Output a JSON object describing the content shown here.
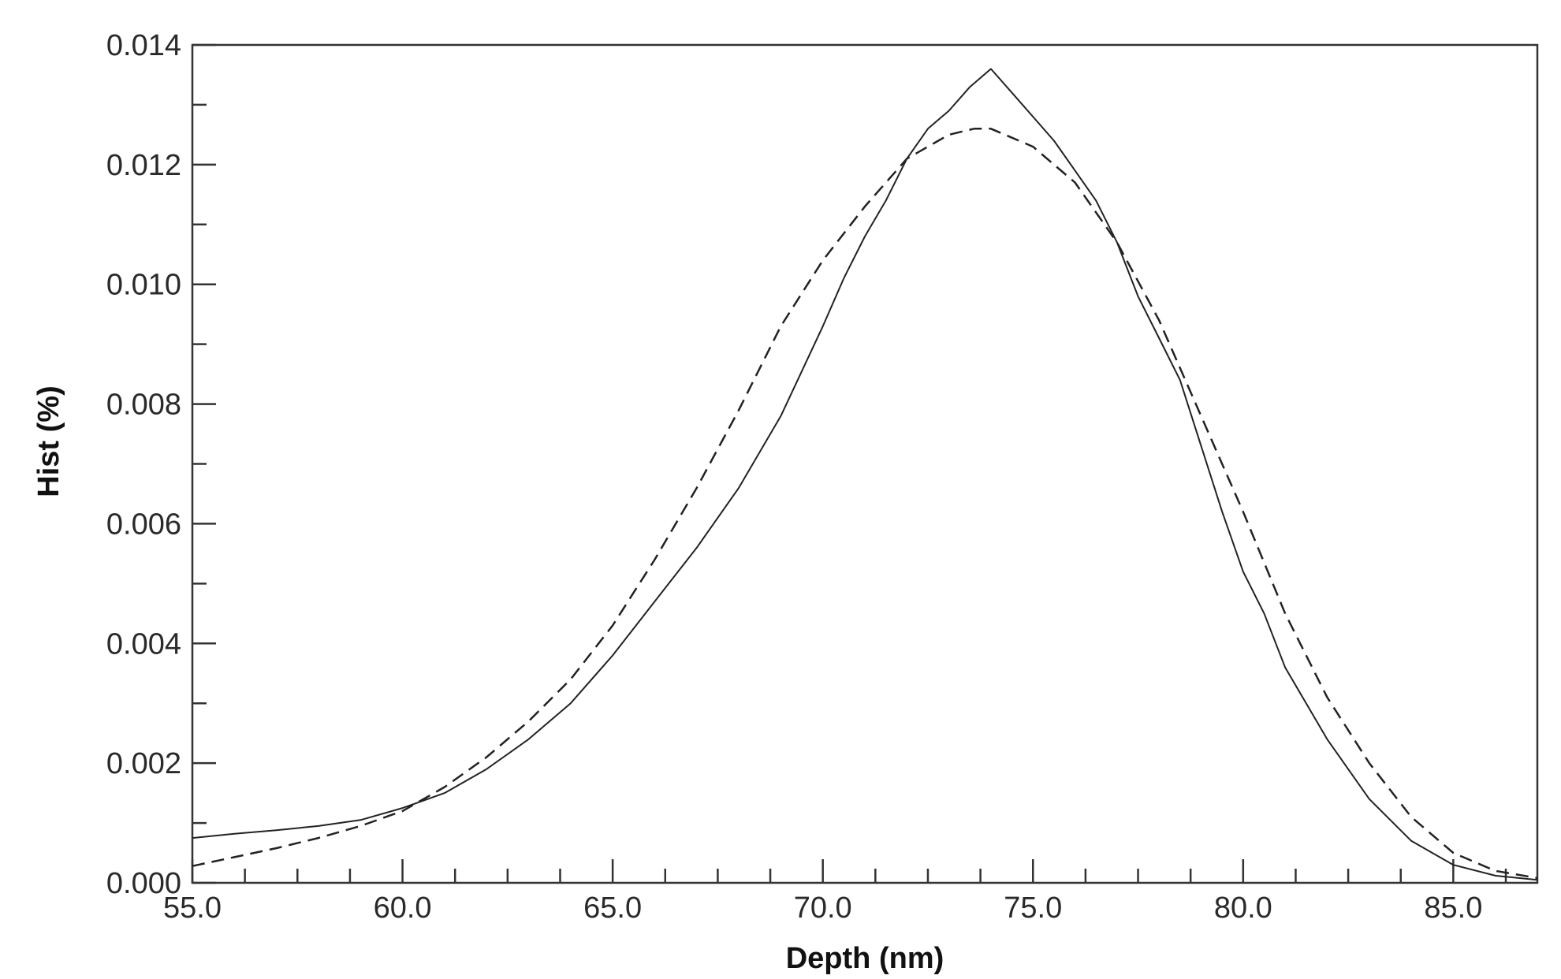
{
  "chart_data": {
    "type": "line",
    "xlabel": "Depth (nm)",
    "ylabel": "Hist (%)",
    "xlim": [
      55.0,
      87.0
    ],
    "ylim": [
      0.0,
      0.014
    ],
    "x_ticks": [
      "55.0",
      "60.0",
      "65.0",
      "70.0",
      "75.0",
      "80.0",
      "85.0"
    ],
    "y_ticks": [
      "0.000",
      "0.002",
      "0.004",
      "0.006",
      "0.008",
      "0.010",
      "0.012",
      "0.014"
    ],
    "grid": false,
    "series": [
      {
        "style": "solid",
        "x": [
          55.0,
          56.0,
          57.0,
          58.0,
          59.0,
          60.0,
          61.0,
          62.0,
          63.0,
          64.0,
          65.0,
          66.0,
          67.0,
          68.0,
          69.0,
          70.0,
          70.5,
          71.0,
          71.5,
          72.0,
          72.5,
          73.0,
          73.5,
          74.0,
          74.5,
          75.0,
          75.5,
          76.0,
          76.5,
          77.0,
          77.5,
          78.0,
          78.5,
          79.0,
          79.5,
          80.0,
          80.5,
          81.0,
          82.0,
          83.0,
          84.0,
          85.0,
          86.0,
          87.0
        ],
        "y": [
          0.00075,
          0.00082,
          0.00088,
          0.00095,
          0.00105,
          0.00125,
          0.0015,
          0.0019,
          0.0024,
          0.003,
          0.0038,
          0.0047,
          0.0056,
          0.0066,
          0.0078,
          0.0093,
          0.0101,
          0.0108,
          0.0114,
          0.0121,
          0.0126,
          0.0129,
          0.0133,
          0.0136,
          0.0132,
          0.0128,
          0.0124,
          0.0119,
          0.0114,
          0.0107,
          0.0098,
          0.0091,
          0.0084,
          0.0073,
          0.0062,
          0.0052,
          0.0045,
          0.0036,
          0.0024,
          0.0014,
          0.0007,
          0.0003,
          0.00012,
          5e-05
        ]
      },
      {
        "style": "dashed",
        "x": [
          55.0,
          56.0,
          57.0,
          58.0,
          59.0,
          60.0,
          61.0,
          62.0,
          63.0,
          64.0,
          65.0,
          66.0,
          67.0,
          68.0,
          69.0,
          70.0,
          71.0,
          72.0,
          73.0,
          73.6,
          74.0,
          75.0,
          76.0,
          77.0,
          78.0,
          79.0,
          80.0,
          81.0,
          82.0,
          83.0,
          84.0,
          85.0,
          86.0,
          87.0
        ],
        "y": [
          0.00028,
          0.00043,
          0.00058,
          0.00075,
          0.00095,
          0.0012,
          0.0016,
          0.0021,
          0.0027,
          0.0034,
          0.0043,
          0.0054,
          0.0066,
          0.0079,
          0.0093,
          0.0104,
          0.0113,
          0.0121,
          0.0125,
          0.0126,
          0.0126,
          0.0123,
          0.0117,
          0.0107,
          0.0094,
          0.0078,
          0.0062,
          0.0045,
          0.0031,
          0.002,
          0.0011,
          0.0005,
          0.0002,
          8e-05
        ]
      }
    ]
  }
}
